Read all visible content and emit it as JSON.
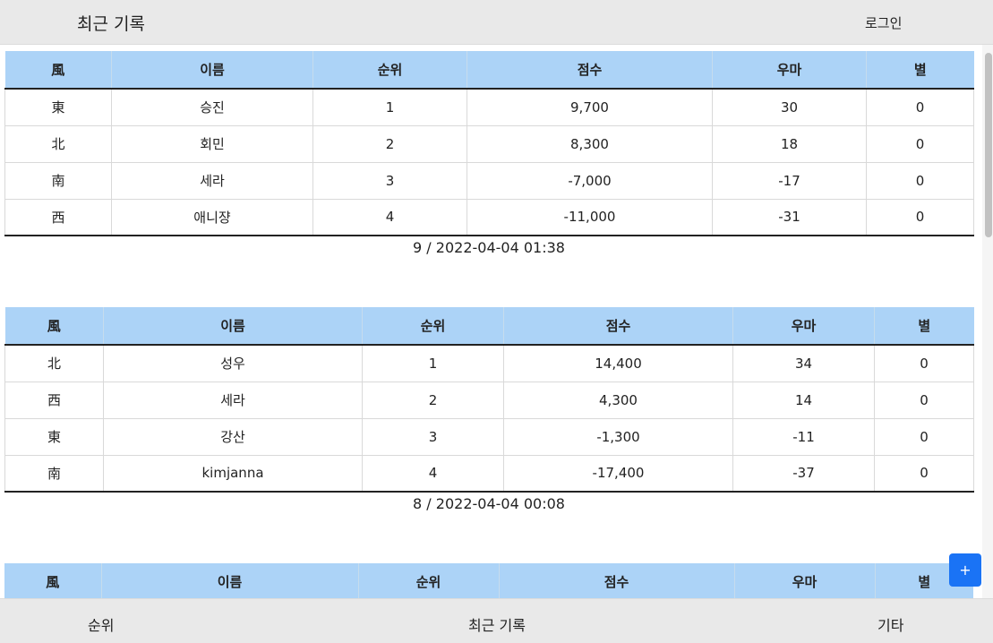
{
  "header": {
    "title": "최근 기록",
    "login_label": "로그인"
  },
  "table_headers": [
    "風",
    "이름",
    "순위",
    "점수",
    "우마",
    "별"
  ],
  "games": [
    {
      "rows": [
        {
          "wind": "東",
          "name": "승진",
          "rank": "1",
          "score": "9,700",
          "uma": "30",
          "star": "0"
        },
        {
          "wind": "北",
          "name": "회민",
          "rank": "2",
          "score": "8,300",
          "uma": "18",
          "star": "0"
        },
        {
          "wind": "南",
          "name": "세라",
          "rank": "3",
          "score": "-7,000",
          "uma": "-17",
          "star": "0"
        },
        {
          "wind": "西",
          "name": "애니쟝",
          "rank": "4",
          "score": "-11,000",
          "uma": "-31",
          "star": "0"
        }
      ],
      "meta": "9 / 2022-04-04 01:38"
    },
    {
      "rows": [
        {
          "wind": "北",
          "name": "성우",
          "rank": "1",
          "score": "14,400",
          "uma": "34",
          "star": "0"
        },
        {
          "wind": "西",
          "name": "세라",
          "rank": "2",
          "score": "4,300",
          "uma": "14",
          "star": "0"
        },
        {
          "wind": "東",
          "name": "강산",
          "rank": "3",
          "score": "-1,300",
          "uma": "-11",
          "star": "0"
        },
        {
          "wind": "南",
          "name": "kimjanna",
          "rank": "4",
          "score": "-17,400",
          "uma": "-37",
          "star": "0"
        }
      ],
      "meta": "8 / 2022-04-04 00:08"
    },
    {
      "rows": [],
      "meta": ""
    }
  ],
  "fab": {
    "label": "+"
  },
  "bottom_nav": [
    {
      "label": "순위"
    },
    {
      "label": "최근 기록"
    },
    {
      "label": "기타"
    }
  ],
  "colors": {
    "header_bg": "#e9e9e9",
    "table_header_bg": "#acd3f7",
    "fab_bg": "#1a73f5"
  }
}
